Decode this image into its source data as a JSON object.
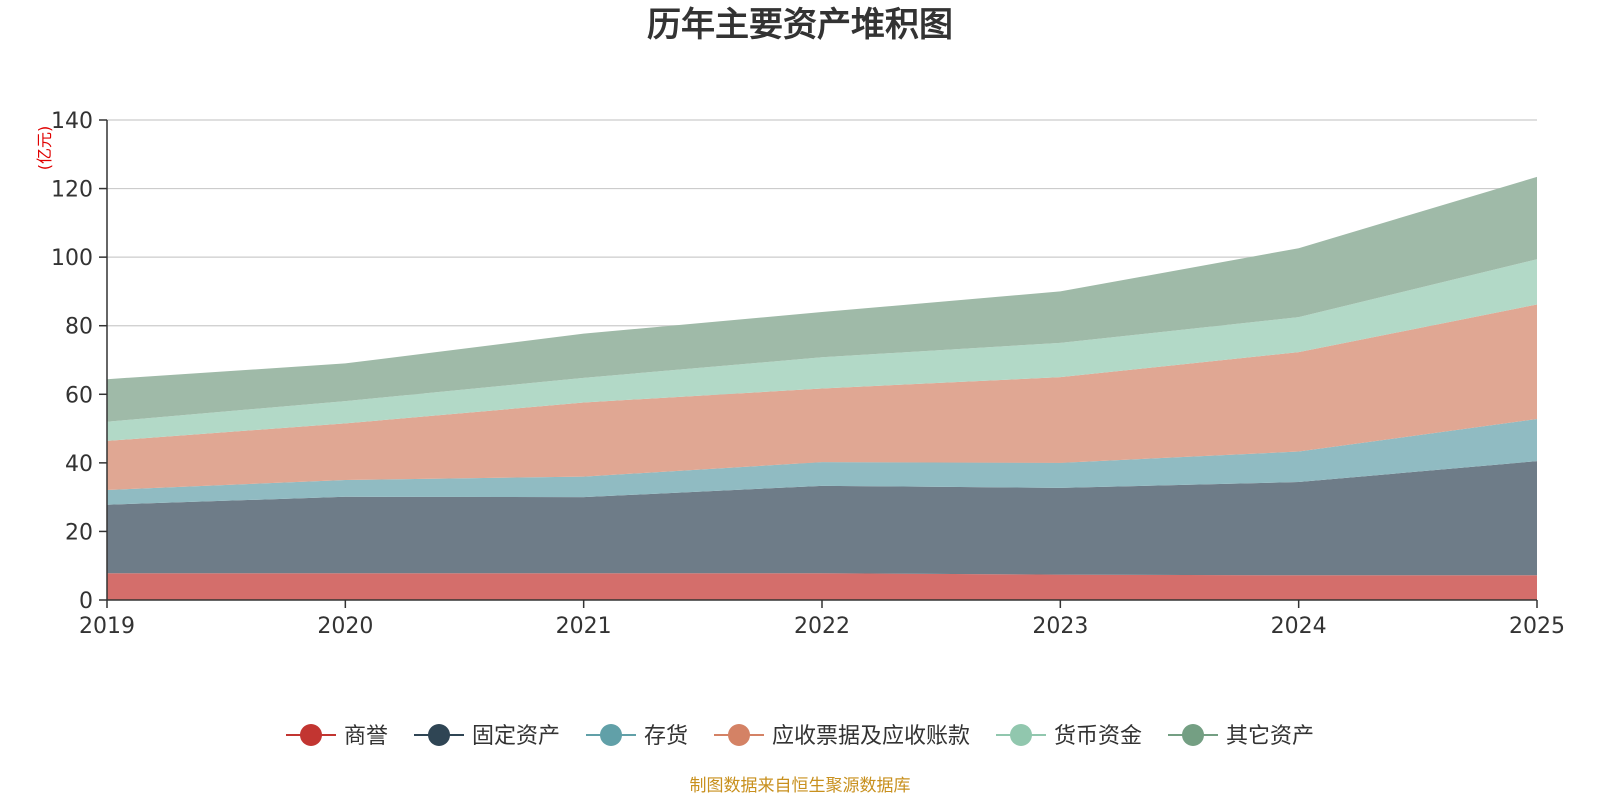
{
  "chart_data": {
    "type": "area",
    "stacked": true,
    "title": "历年主要资产堆积图",
    "ylabel": "(亿元)",
    "xlabel": "",
    "categories": [
      "2019",
      "2020",
      "2021",
      "2022",
      "2023",
      "2024",
      "2025"
    ],
    "ylim": [
      0,
      140
    ],
    "yticks": [
      0,
      20,
      40,
      60,
      80,
      100,
      120,
      140
    ],
    "grid": true,
    "legend_position": "bottom",
    "series": [
      {
        "name": "商誉",
        "color": "#c23531",
        "fill": "#d46e6b",
        "values": [
          7.8,
          7.8,
          7.8,
          7.8,
          7.4,
          7.2,
          7.2
        ]
      },
      {
        "name": "固定资产",
        "color": "#2f4554",
        "fill": "#6e7c88",
        "values": [
          20.0,
          22.3,
          22.2,
          25.5,
          25.3,
          27.2,
          33.3
        ]
      },
      {
        "name": "存货",
        "color": "#61a0a8",
        "fill": "#90bbc2",
        "values": [
          4.3,
          4.9,
          6.0,
          6.9,
          7.3,
          8.9,
          12.3
        ]
      },
      {
        "name": "应收票据及应收账款",
        "color": "#d48265",
        "fill": "#e0a793",
        "values": [
          14.3,
          16.5,
          21.6,
          21.5,
          25.0,
          29.0,
          33.4
        ]
      },
      {
        "name": "货币资金",
        "color": "#91c7ae",
        "fill": "#b2d9c7",
        "values": [
          5.6,
          6.5,
          7.2,
          9.1,
          10.0,
          10.2,
          13.2
        ]
      },
      {
        "name": "其它资产",
        "color": "#749f83",
        "fill": "#9fbaa8",
        "values": [
          12.4,
          11.0,
          12.9,
          13.2,
          15.0,
          20.1,
          24.0
        ]
      }
    ]
  },
  "footer": {
    "source": "制图数据来自恒生聚源数据库"
  }
}
